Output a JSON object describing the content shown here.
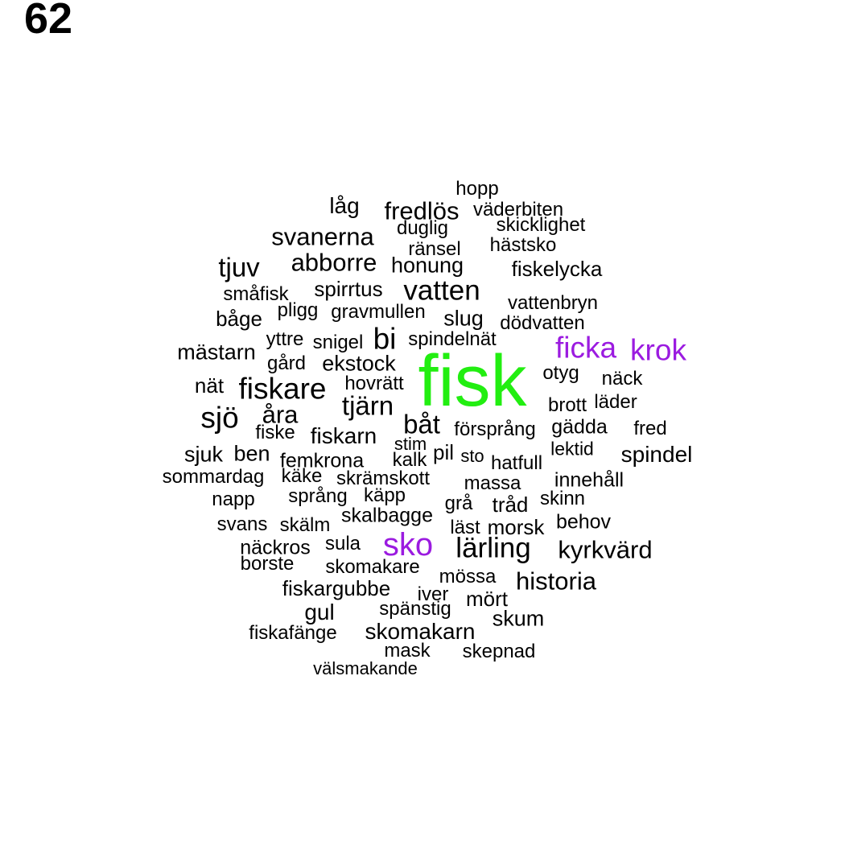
{
  "page_number": "62",
  "colors": {
    "default": "#000000",
    "green": "#22ee11",
    "purple": "#9b1be0"
  },
  "words": [
    {
      "text": "fisk",
      "color": "green"
    },
    {
      "text": "sko",
      "color": "purple"
    },
    {
      "text": "ficka",
      "color": "purple"
    },
    {
      "text": "krok",
      "color": "purple"
    },
    {
      "text": "hopp"
    },
    {
      "text": "låg"
    },
    {
      "text": "fredlös"
    },
    {
      "text": "väderbiten"
    },
    {
      "text": "skicklighet"
    },
    {
      "text": "duglig"
    },
    {
      "text": "svanerna"
    },
    {
      "text": "hästsko"
    },
    {
      "text": "ränsel"
    },
    {
      "text": "tjuv"
    },
    {
      "text": "abborre"
    },
    {
      "text": "honung"
    },
    {
      "text": "fiskelycka"
    },
    {
      "text": "småfisk"
    },
    {
      "text": "spirrtus"
    },
    {
      "text": "vatten"
    },
    {
      "text": "vattenbryn"
    },
    {
      "text": "pligg"
    },
    {
      "text": "gravmullen"
    },
    {
      "text": "båge"
    },
    {
      "text": "slug"
    },
    {
      "text": "dödvatten"
    },
    {
      "text": "yttre"
    },
    {
      "text": "snigel"
    },
    {
      "text": "bi"
    },
    {
      "text": "spindelnät"
    },
    {
      "text": "mästarn"
    },
    {
      "text": "gård"
    },
    {
      "text": "ekstock"
    },
    {
      "text": "otyg"
    },
    {
      "text": "näck"
    },
    {
      "text": "nät"
    },
    {
      "text": "fiskare"
    },
    {
      "text": "hovrätt"
    },
    {
      "text": "brott"
    },
    {
      "text": "läder"
    },
    {
      "text": "sjö"
    },
    {
      "text": "åra"
    },
    {
      "text": "tjärn"
    },
    {
      "text": "båt"
    },
    {
      "text": "fiske"
    },
    {
      "text": "fiskarn"
    },
    {
      "text": "försprång"
    },
    {
      "text": "gädda"
    },
    {
      "text": "fred"
    },
    {
      "text": "stim"
    },
    {
      "text": "sjuk"
    },
    {
      "text": "ben"
    },
    {
      "text": "pil"
    },
    {
      "text": "lektid"
    },
    {
      "text": "spindel"
    },
    {
      "text": "femkrona"
    },
    {
      "text": "kalk"
    },
    {
      "text": "sto"
    },
    {
      "text": "hatfull"
    },
    {
      "text": "sommardag"
    },
    {
      "text": "käke"
    },
    {
      "text": "skrämskott"
    },
    {
      "text": "massa"
    },
    {
      "text": "innehåll"
    },
    {
      "text": "napp"
    },
    {
      "text": "språng"
    },
    {
      "text": "käpp"
    },
    {
      "text": "grå"
    },
    {
      "text": "tråd"
    },
    {
      "text": "skinn"
    },
    {
      "text": "skalbagge"
    },
    {
      "text": "svans"
    },
    {
      "text": "skälm"
    },
    {
      "text": "läst"
    },
    {
      "text": "morsk"
    },
    {
      "text": "behov"
    },
    {
      "text": "näckros"
    },
    {
      "text": "sula"
    },
    {
      "text": "lärling"
    },
    {
      "text": "kyrkvärd"
    },
    {
      "text": "borste"
    },
    {
      "text": "skomakare"
    },
    {
      "text": "mössa"
    },
    {
      "text": "historia"
    },
    {
      "text": "fiskargubbe"
    },
    {
      "text": "iver"
    },
    {
      "text": "mört"
    },
    {
      "text": "gul"
    },
    {
      "text": "spänstig"
    },
    {
      "text": "skum"
    },
    {
      "text": "fiskafänge"
    },
    {
      "text": "skomakarn"
    },
    {
      "text": "mask"
    },
    {
      "text": "skepnad"
    },
    {
      "text": "välsmakande"
    }
  ]
}
